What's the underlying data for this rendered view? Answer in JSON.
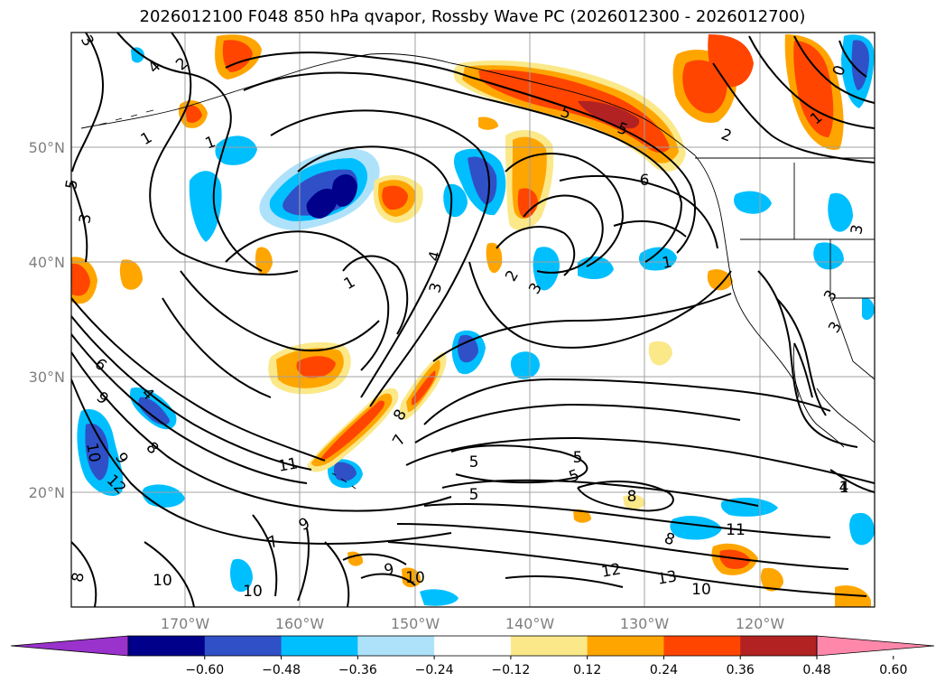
{
  "title": "2026012100 F048 850 hPa qvapor, Rossby Wave PC (2026012300 - 2026012700)",
  "lat_labels": [
    "50°N",
    "40°N",
    "30°N",
    "20°N"
  ],
  "lon_labels": [
    "170°W",
    "160°W",
    "150°W",
    "140°W",
    "130°W",
    "120°W"
  ],
  "colorbar": {
    "tick_labels": [
      "−0.60",
      "−0.48",
      "−0.36",
      "−0.24",
      "−0.12",
      "0.12",
      "0.24",
      "0.36",
      "0.48",
      "0.60"
    ],
    "colors": [
      "#9933cc",
      "#00008b",
      "#3050c8",
      "#00bfff",
      "#aee2fa",
      "#ffffff",
      "#fbe889",
      "#ffa500",
      "#ff4500",
      "#b22222",
      "#ff88aa"
    ]
  },
  "contour_labels": [
    "3",
    "4",
    "2",
    "1",
    "1",
    "5",
    "3",
    "4",
    "3",
    "2",
    "3",
    "5",
    "5",
    "6",
    "1",
    "2",
    "0",
    "1",
    "1",
    "3",
    "3",
    "3",
    "1",
    "6",
    "9",
    "4",
    "8",
    "9",
    "10",
    "12",
    "11",
    "5",
    "5",
    "5",
    "5",
    "8",
    "8",
    "7",
    "7",
    "9",
    "10",
    "10",
    "8",
    "9",
    "11",
    "12",
    "13",
    "10",
    "8",
    "10",
    "4"
  ]
}
